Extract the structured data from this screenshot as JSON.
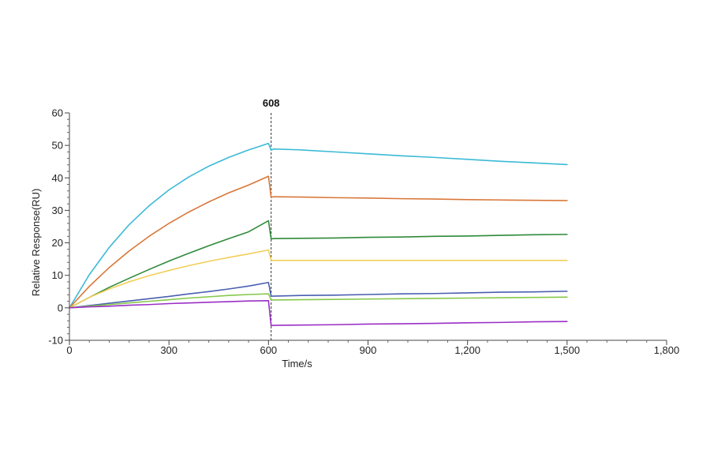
{
  "chart_data": {
    "type": "line",
    "title": "",
    "xlabel": "Time/s",
    "ylabel": "Relative Response(RU)",
    "xlim": [
      0,
      1800
    ],
    "ylim": [
      -10,
      60
    ],
    "x_ticks": [
      0,
      300,
      600,
      900,
      1200,
      1500,
      1800
    ],
    "x_tick_labels": [
      "0",
      "300",
      "600",
      "900",
      "1,200",
      "1,500",
      "1,800"
    ],
    "y_ticks": [
      -10,
      0,
      10,
      20,
      30,
      40,
      50,
      60
    ],
    "y_tick_labels": [
      "-10",
      "0",
      "10",
      "20",
      "30",
      "40",
      "50",
      "60"
    ],
    "grid": false,
    "legend": "none",
    "marker_line": {
      "x": 608,
      "label": "608"
    },
    "series": [
      {
        "color": "#3bbad6",
        "x": [
          0,
          60,
          120,
          180,
          240,
          300,
          360,
          420,
          480,
          540,
          600,
          608,
          615,
          700,
          800,
          900,
          1000,
          1100,
          1200,
          1300,
          1400,
          1500
        ],
        "y": [
          0,
          10.2,
          18.6,
          25.6,
          31.4,
          36.3,
          40.3,
          43.6,
          46.3,
          48.6,
          50.6,
          48.5,
          48.9,
          48.6,
          48.0,
          47.4,
          46.8,
          46.3,
          45.7,
          45.1,
          44.6,
          44.1
        ]
      },
      {
        "color": "#d9773a",
        "x": [
          0,
          60,
          120,
          180,
          240,
          300,
          360,
          420,
          480,
          540,
          600,
          608,
          615,
          700,
          800,
          900,
          1000,
          1100,
          1200,
          1300,
          1400,
          1500
        ],
        "y": [
          0,
          6.6,
          12.4,
          17.5,
          22.0,
          26.0,
          29.5,
          32.6,
          35.4,
          37.8,
          40.5,
          34.0,
          34.2,
          34.1,
          33.9,
          33.8,
          33.6,
          33.5,
          33.3,
          33.2,
          33.1,
          33.0
        ]
      },
      {
        "color": "#2f8a3a",
        "x": [
          0,
          60,
          120,
          180,
          240,
          300,
          360,
          420,
          480,
          540,
          600,
          608,
          615,
          700,
          800,
          900,
          1000,
          1100,
          1200,
          1300,
          1400,
          1500
        ],
        "y": [
          0,
          3.2,
          6.3,
          9.1,
          11.8,
          14.4,
          16.8,
          19.1,
          21.3,
          23.4,
          26.8,
          21.2,
          21.3,
          21.4,
          21.5,
          21.7,
          21.8,
          22.0,
          22.1,
          22.3,
          22.5,
          22.6
        ]
      },
      {
        "color": "#f2cf5b",
        "x": [
          0,
          60,
          120,
          180,
          240,
          300,
          360,
          420,
          480,
          540,
          600,
          608,
          615,
          700,
          800,
          900,
          1000,
          1100,
          1200,
          1300,
          1400,
          1500
        ],
        "y": [
          0,
          3.2,
          5.8,
          8.0,
          9.9,
          11.5,
          13.0,
          14.3,
          15.5,
          16.6,
          17.8,
          14.6,
          14.6,
          14.6,
          14.6,
          14.6,
          14.6,
          14.6,
          14.6,
          14.6,
          14.6,
          14.6
        ]
      },
      {
        "color": "#4a5fb0",
        "x": [
          0,
          60,
          120,
          180,
          240,
          300,
          360,
          420,
          480,
          540,
          600,
          608,
          615,
          700,
          800,
          900,
          1000,
          1100,
          1200,
          1300,
          1400,
          1500
        ],
        "y": [
          0,
          0.7,
          1.4,
          2.1,
          2.8,
          3.5,
          4.3,
          5.0,
          5.8,
          6.7,
          7.8,
          3.6,
          3.6,
          3.8,
          3.9,
          4.1,
          4.3,
          4.4,
          4.6,
          4.8,
          4.9,
          5.1
        ]
      },
      {
        "color": "#86c84a",
        "x": [
          0,
          60,
          120,
          180,
          240,
          300,
          360,
          420,
          480,
          540,
          600,
          608,
          615,
          700,
          800,
          900,
          1000,
          1100,
          1200,
          1300,
          1400,
          1500
        ],
        "y": [
          0,
          0.5,
          1.0,
          1.5,
          2.0,
          2.5,
          3.0,
          3.4,
          3.8,
          4.1,
          4.3,
          2.4,
          2.4,
          2.5,
          2.6,
          2.7,
          2.8,
          2.9,
          3.0,
          3.1,
          3.2,
          3.3
        ]
      },
      {
        "color": "#9b2fc6",
        "x": [
          0,
          60,
          120,
          180,
          240,
          300,
          360,
          420,
          480,
          540,
          600,
          608,
          615,
          700,
          800,
          900,
          1000,
          1100,
          1200,
          1300,
          1400,
          1500
        ],
        "y": [
          0,
          0.3,
          0.5,
          0.8,
          1.0,
          1.3,
          1.5,
          1.7,
          1.9,
          2.1,
          2.2,
          -5.5,
          -5.4,
          -5.3,
          -5.2,
          -5.0,
          -4.9,
          -4.8,
          -4.6,
          -4.5,
          -4.3,
          -4.2
        ]
      }
    ]
  }
}
